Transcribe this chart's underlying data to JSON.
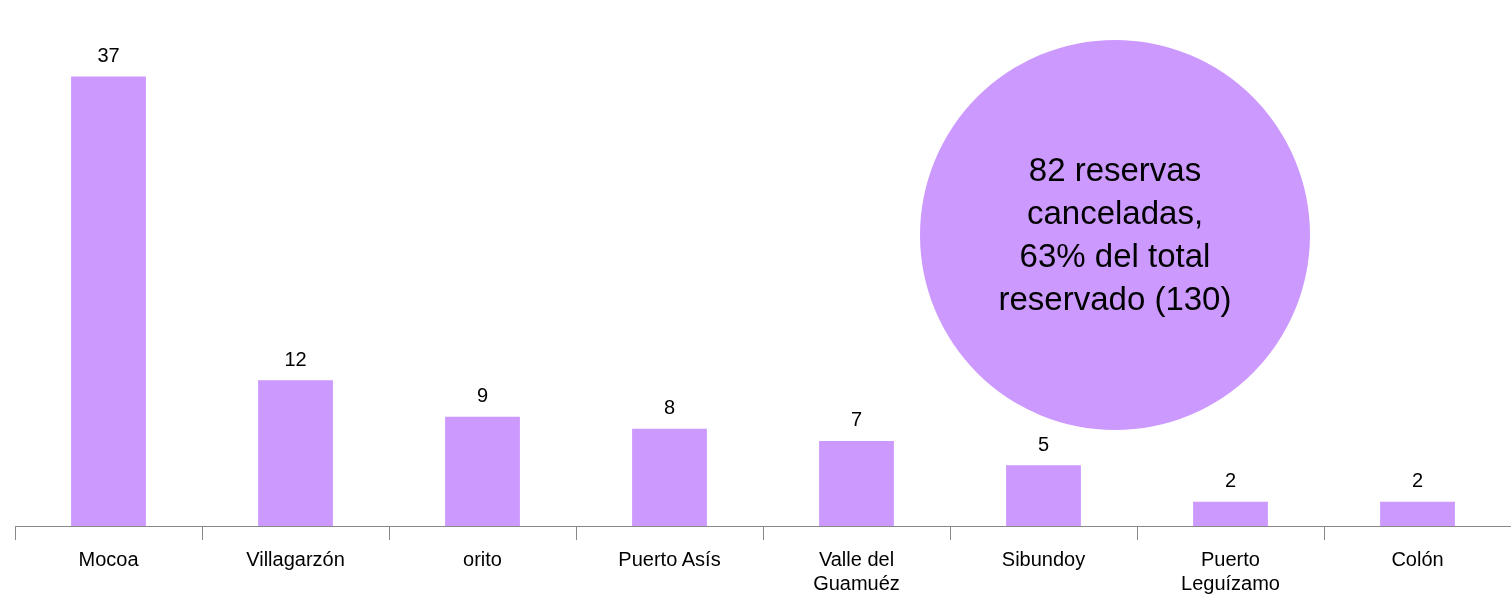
{
  "chart_data": {
    "type": "bar",
    "categories": [
      "Mocoa",
      "Villagarzón",
      "orito",
      "Puerto Asís",
      "Valle del Guamuéz",
      "Sibundoy",
      "Puerto Leguízamo",
      "Colón"
    ],
    "values": [
      37,
      12,
      9,
      8,
      7,
      5,
      2,
      2
    ],
    "color": "#cc99ff",
    "data_labels": true,
    "grid": false,
    "legend": false,
    "annotations": [
      "82 reservas canceladas, 63% del total reservado (130)"
    ]
  }
}
